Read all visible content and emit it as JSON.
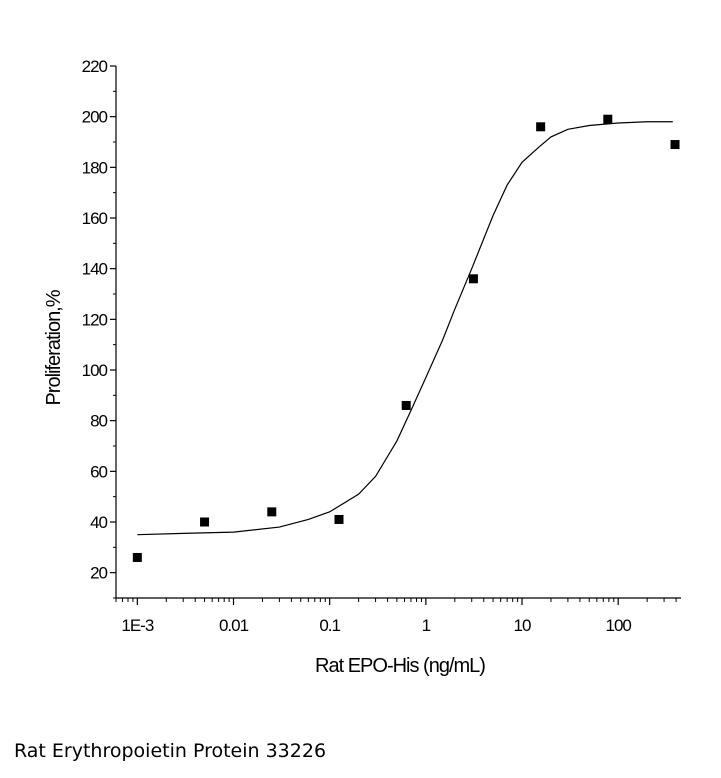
{
  "caption": "Rat Erythropoietin Protein 33226",
  "chart_data": {
    "type": "scatter",
    "xlabel": "Rat EPO-His (ng/mL)",
    "ylabel": "Proliferation,%",
    "x_scale": "log",
    "xlim": [
      0.0006,
      450
    ],
    "ylim": [
      10,
      220
    ],
    "x_ticks": [
      0.001,
      0.01,
      0.1,
      1,
      10,
      100
    ],
    "x_tick_labels": [
      "1E-3",
      "0.01",
      "0.1",
      "1",
      "10",
      "100"
    ],
    "y_ticks": [
      20,
      40,
      60,
      80,
      100,
      120,
      140,
      160,
      180,
      200,
      220
    ],
    "y_tick_labels": [
      "20",
      "40",
      "60",
      "80",
      "100",
      "120",
      "140",
      "160",
      "180",
      "200",
      "220"
    ],
    "grid": false,
    "series": [
      {
        "marker": "square",
        "color": "#000000",
        "points": [
          {
            "x": 0.001,
            "y": 26
          },
          {
            "x": 0.005,
            "y": 40
          },
          {
            "x": 0.025,
            "y": 44
          },
          {
            "x": 0.125,
            "y": 41
          },
          {
            "x": 0.625,
            "y": 86
          },
          {
            "x": 3.125,
            "y": 136
          },
          {
            "x": 15.625,
            "y": 196
          },
          {
            "x": 78,
            "y": 199
          },
          {
            "x": 390,
            "y": 189
          }
        ]
      },
      {
        "line": true,
        "color": "#000000",
        "points": [
          {
            "x": 0.001,
            "y": 35
          },
          {
            "x": 0.003,
            "y": 35.5
          },
          {
            "x": 0.01,
            "y": 36
          },
          {
            "x": 0.03,
            "y": 38
          },
          {
            "x": 0.06,
            "y": 41
          },
          {
            "x": 0.1,
            "y": 44
          },
          {
            "x": 0.2,
            "y": 51
          },
          {
            "x": 0.3,
            "y": 58
          },
          {
            "x": 0.5,
            "y": 72
          },
          {
            "x": 0.7,
            "y": 84
          },
          {
            "x": 1,
            "y": 97
          },
          {
            "x": 1.5,
            "y": 112
          },
          {
            "x": 2,
            "y": 124
          },
          {
            "x": 3,
            "y": 140
          },
          {
            "x": 5,
            "y": 161
          },
          {
            "x": 7,
            "y": 173
          },
          {
            "x": 10,
            "y": 182
          },
          {
            "x": 15,
            "y": 188
          },
          {
            "x": 20,
            "y": 192
          },
          {
            "x": 30,
            "y": 195
          },
          {
            "x": 50,
            "y": 196.5
          },
          {
            "x": 100,
            "y": 197.5
          },
          {
            "x": 200,
            "y": 198
          },
          {
            "x": 370,
            "y": 198
          }
        ]
      }
    ]
  }
}
